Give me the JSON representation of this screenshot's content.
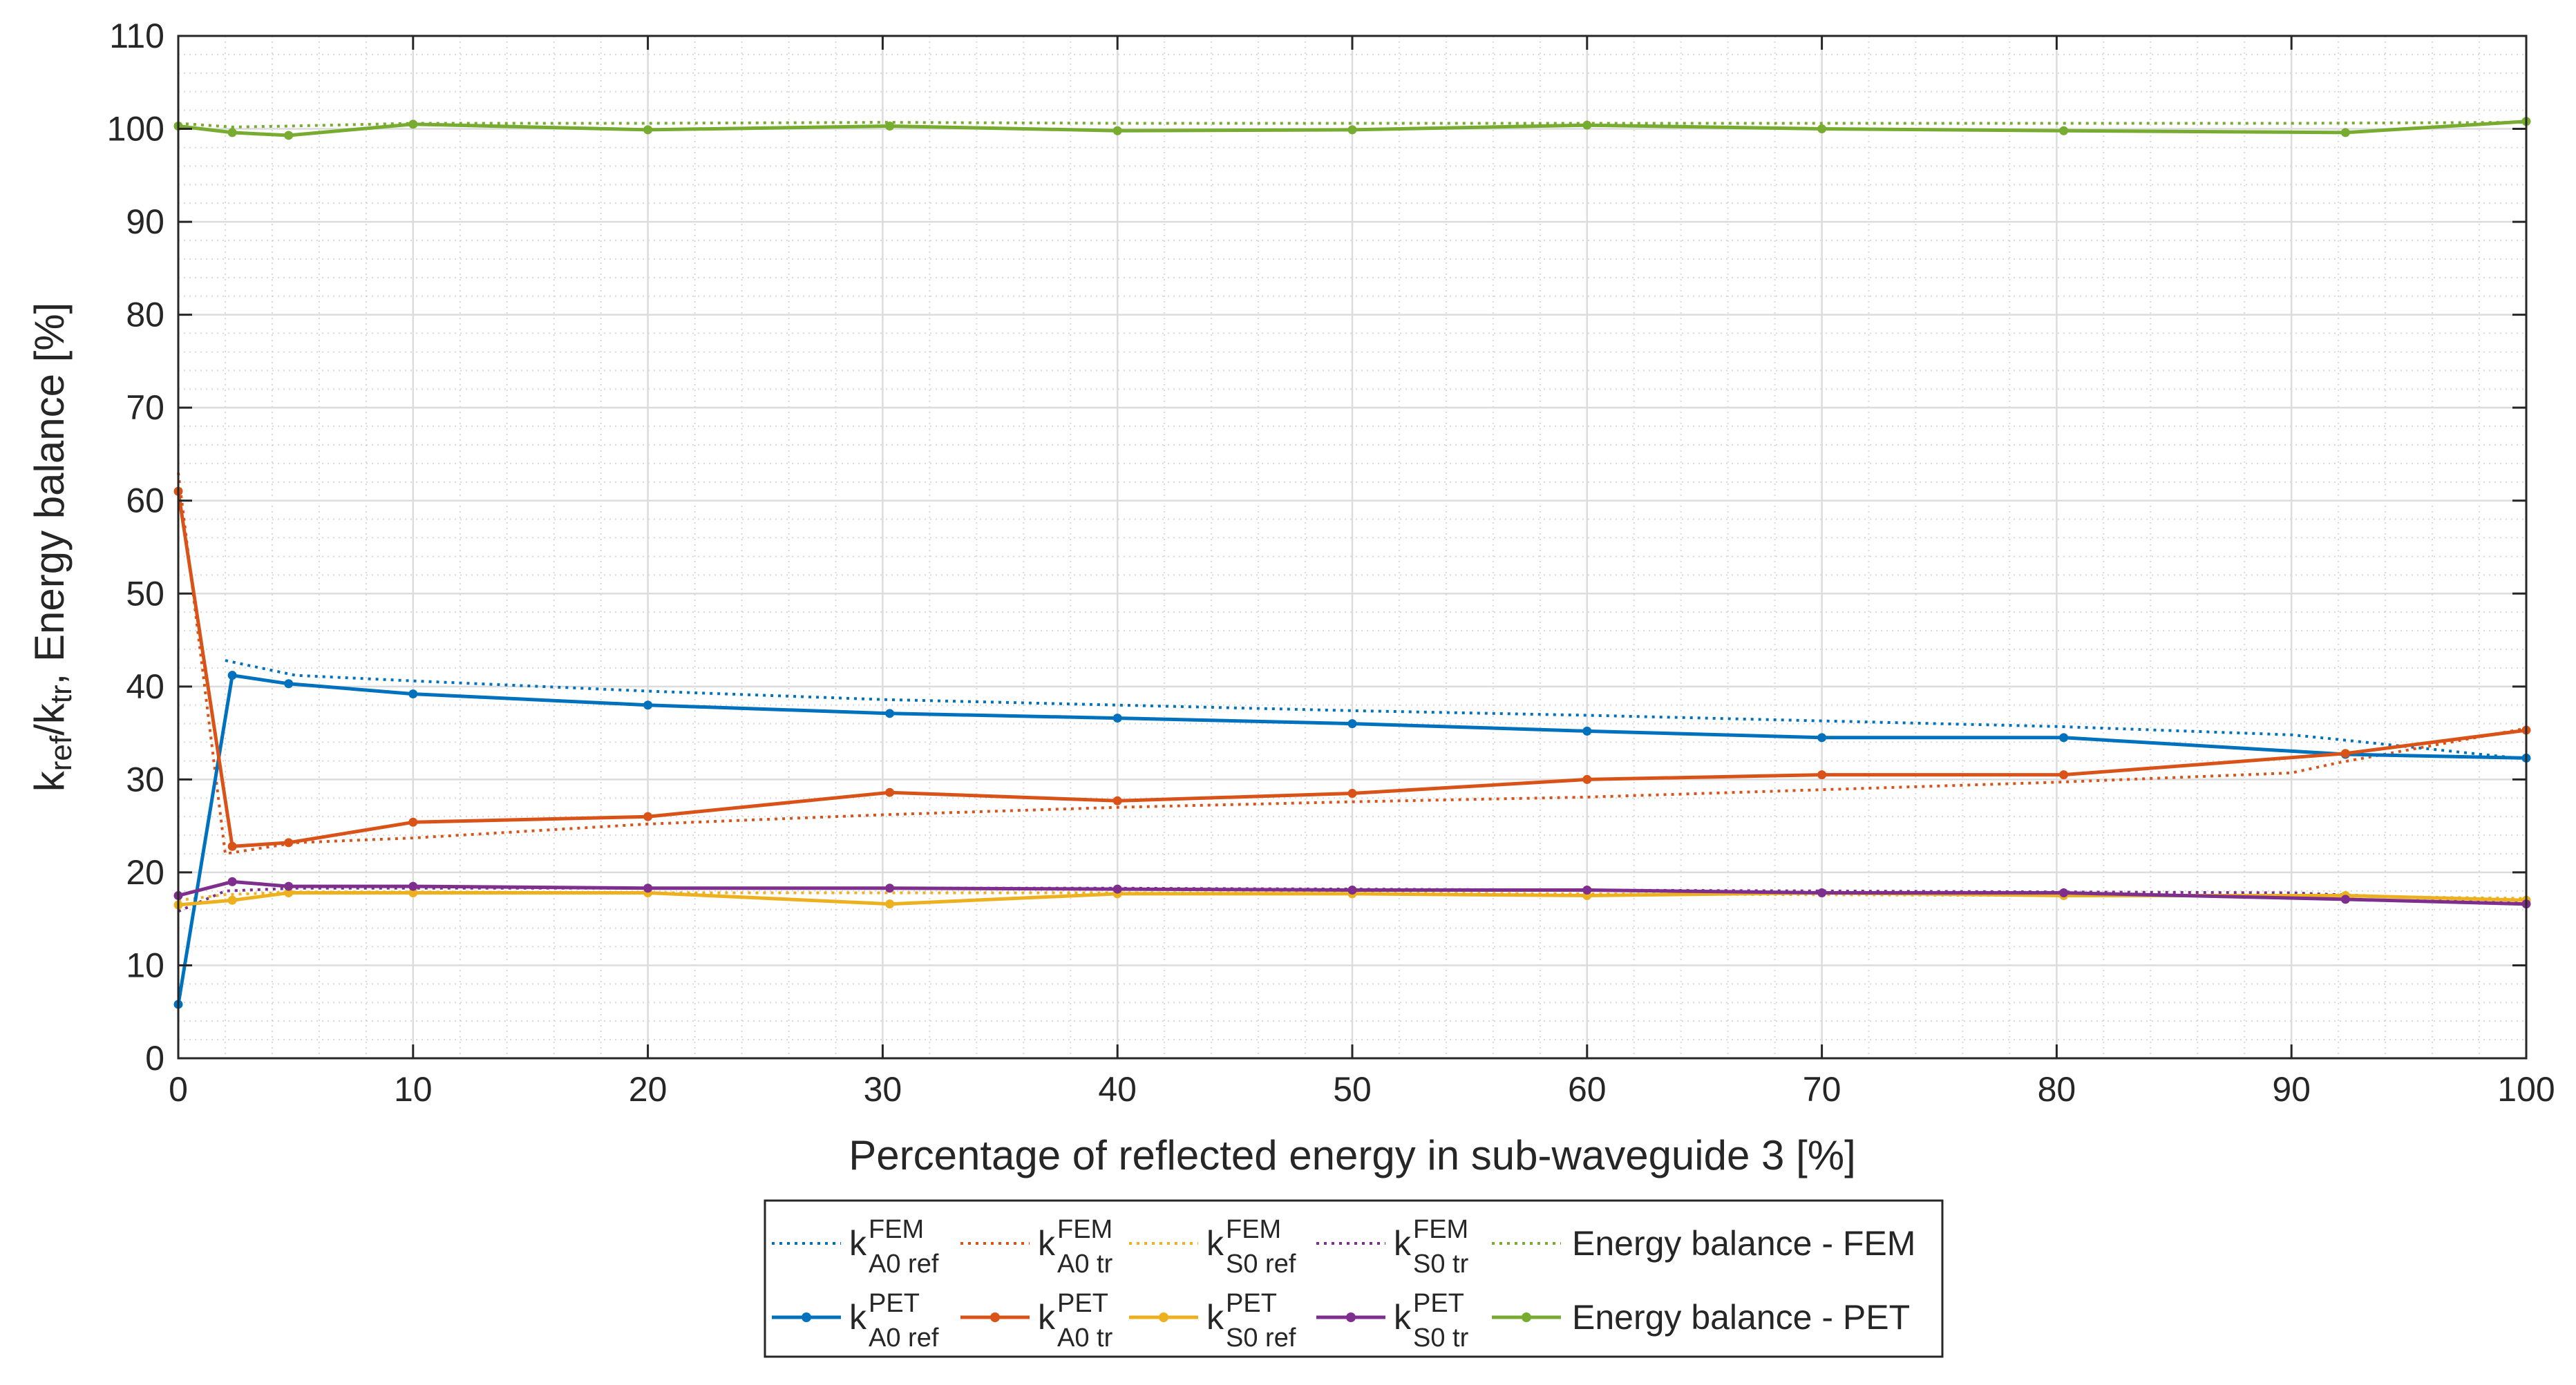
{
  "chart_data": {
    "type": "line",
    "title": "",
    "xlabel": "Percentage of reflected energy in sub-waveguide 3 [%]",
    "ylabel": {
      "k1": "k",
      "s1": "ref",
      "slash": "/k",
      "s2": "tr",
      "rest": ", Energy balance [%]"
    },
    "xlim": [
      0,
      100
    ],
    "ylim": [
      0,
      110
    ],
    "xticks": [
      0,
      10,
      20,
      30,
      40,
      50,
      60,
      70,
      80,
      90,
      100
    ],
    "yticks": [
      0,
      10,
      20,
      30,
      40,
      50,
      60,
      70,
      80,
      90,
      100,
      110
    ],
    "grid": true,
    "minor_grid": true,
    "legend_position": "bottom-center",
    "colors": {
      "blue": "#0072BD",
      "orange": "#D95319",
      "yellow": "#EDB120",
      "purple": "#7E2F8E",
      "green": "#77AC30"
    },
    "series": [
      {
        "name": "kA0ref_FEM",
        "base": "k",
        "sup": "FEM",
        "sub": "A0 ref",
        "color": "#0072BD",
        "style": "dotted",
        "x": [
          2,
          5,
          10,
          20,
          30,
          40,
          50,
          60,
          70,
          80,
          90,
          92,
          100
        ],
        "y": [
          42.8,
          41.2,
          40.6,
          39.5,
          38.6,
          38.0,
          37.4,
          36.9,
          36.3,
          35.7,
          34.8,
          34.3,
          32.2
        ]
      },
      {
        "name": "kA0tr_FEM",
        "base": "k",
        "sup": "FEM",
        "sub": "A0 tr",
        "color": "#D95319",
        "style": "dotted",
        "x": [
          0,
          2,
          5,
          10,
          20,
          30,
          40,
          50,
          60,
          70,
          80,
          90,
          92,
          100
        ],
        "y": [
          63.0,
          22.0,
          23.2,
          23.7,
          25.2,
          26.2,
          27.0,
          27.6,
          28.1,
          28.9,
          29.7,
          30.7,
          31.8,
          35.5
        ]
      },
      {
        "name": "kS0ref_FEM",
        "base": "k",
        "sup": "FEM",
        "sub": "S0 ref",
        "color": "#EDB120",
        "style": "dotted",
        "x": [
          0,
          2,
          5,
          10,
          20,
          30,
          40,
          50,
          60,
          70,
          80,
          90,
          100
        ],
        "y": [
          17.0,
          17.6,
          17.9,
          17.9,
          17.8,
          17.8,
          17.8,
          17.8,
          17.7,
          17.6,
          17.5,
          17.5,
          17.2
        ]
      },
      {
        "name": "kS0tr_FEM",
        "base": "k",
        "sup": "FEM",
        "sub": "S0 tr",
        "color": "#7E2F8E",
        "style": "dotted",
        "x": [
          0,
          2,
          5,
          10,
          20,
          30,
          40,
          50,
          60,
          70,
          80,
          90,
          100
        ],
        "y": [
          15.8,
          18.0,
          18.3,
          18.3,
          18.3,
          18.3,
          18.3,
          18.2,
          18.1,
          18.0,
          17.9,
          17.8,
          16.8
        ]
      },
      {
        "name": "EB_FEM",
        "base": "Energy balance - FEM",
        "sup": "",
        "sub": "",
        "color": "#77AC30",
        "style": "dotted",
        "x": [
          0,
          2.3,
          4.7,
          10,
          20,
          30,
          40,
          50,
          60,
          70,
          80,
          90,
          100
        ],
        "y": [
          100.6,
          100.2,
          100.3,
          100.6,
          100.6,
          100.7,
          100.6,
          100.6,
          100.6,
          100.6,
          100.6,
          100.6,
          100.7
        ]
      },
      {
        "name": "kA0ref_PET",
        "base": "k",
        "sup": "PET",
        "sub": "A0 ref",
        "color": "#0072BD",
        "style": "solid",
        "x": [
          0,
          2.3,
          4.7,
          10,
          20,
          30.3,
          40,
          50,
          60,
          70,
          80.3,
          92.3,
          100
        ],
        "y": [
          5.8,
          41.2,
          40.3,
          39.2,
          38.0,
          37.1,
          36.6,
          36.0,
          35.2,
          34.5,
          34.5,
          32.7,
          32.3
        ]
      },
      {
        "name": "kA0tr_PET",
        "base": "k",
        "sup": "PET",
        "sub": "A0 tr",
        "color": "#D95319",
        "style": "solid",
        "x": [
          0,
          2.3,
          4.7,
          10,
          20,
          30.3,
          40,
          50,
          60,
          70,
          80.3,
          92.3,
          100
        ],
        "y": [
          61.0,
          22.8,
          23.2,
          25.4,
          26.0,
          28.6,
          27.7,
          28.5,
          30.0,
          30.5,
          30.5,
          32.8,
          35.3
        ]
      },
      {
        "name": "kS0ref_PET",
        "base": "k",
        "sup": "PET",
        "sub": "S0 ref",
        "color": "#EDB120",
        "style": "solid",
        "x": [
          0,
          2.3,
          4.7,
          10,
          20,
          30.3,
          40,
          50,
          60,
          70,
          80.3,
          92.3,
          100
        ],
        "y": [
          16.5,
          17.0,
          17.8,
          17.8,
          17.8,
          16.6,
          17.7,
          17.7,
          17.5,
          17.8,
          17.5,
          17.5,
          17.0
        ]
      },
      {
        "name": "kS0tr_PET",
        "base": "k",
        "sup": "PET",
        "sub": "S0 tr",
        "color": "#7E2F8E",
        "style": "solid",
        "x": [
          0,
          2.3,
          4.7,
          10,
          20,
          30.3,
          40,
          50,
          60,
          70,
          80.3,
          92.3,
          100
        ],
        "y": [
          17.5,
          19.0,
          18.5,
          18.5,
          18.3,
          18.3,
          18.2,
          18.1,
          18.1,
          17.8,
          17.8,
          17.1,
          16.6
        ]
      },
      {
        "name": "EB_PET",
        "base": "Energy balance - PET",
        "sup": "",
        "sub": "",
        "color": "#77AC30",
        "style": "solid",
        "x": [
          0,
          2.3,
          4.7,
          10,
          20,
          30.3,
          40,
          50,
          60,
          70,
          80.3,
          92.3,
          100
        ],
        "y": [
          100.3,
          99.6,
          99.3,
          100.5,
          99.9,
          100.3,
          99.8,
          99.9,
          100.4,
          100.0,
          99.8,
          99.6,
          100.8
        ]
      }
    ]
  }
}
